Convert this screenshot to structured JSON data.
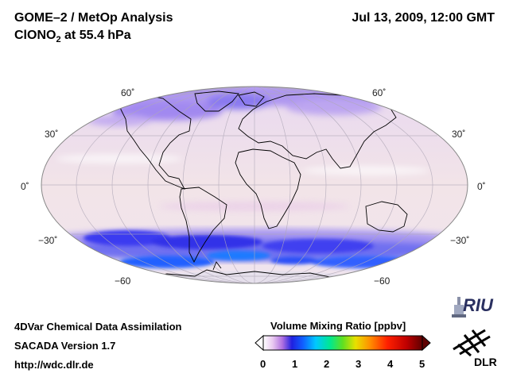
{
  "header": {
    "title_line1": "GOME–2 / MetOp Analysis",
    "title_line2_prefix": "ClONO",
    "title_line2_sub": "2",
    "title_line2_suffix": " at 55.4 hPa",
    "timestamp": "Jul 13, 2009, 12:00 GMT"
  },
  "map": {
    "projection": "mollweide",
    "lat_labels": {
      "n60": "60˚",
      "n30": "30˚",
      "eq": "0˚",
      "s30": "−30˚",
      "s60": "−60"
    }
  },
  "colorbar": {
    "title": "Volume Mixing Ratio [ppbv]",
    "ticks": [
      "0",
      "1",
      "2",
      "3",
      "4",
      "5"
    ],
    "range": [
      0,
      5
    ],
    "colors": [
      "#ffffff",
      "#e8c8f0",
      "#b070e0",
      "#2020e0",
      "#1060ff",
      "#00c8ff",
      "#00e890",
      "#60e020",
      "#e8e000",
      "#ff9000",
      "#ff2000",
      "#c00000",
      "#600000"
    ]
  },
  "footer": {
    "line1": "4DVar Chemical Data Assimilation",
    "line2": "SACADA Version 1.7",
    "line3": "http://wdc.dlr.de"
  },
  "logos": {
    "riu": "RIU",
    "dlr": "DLR"
  }
}
